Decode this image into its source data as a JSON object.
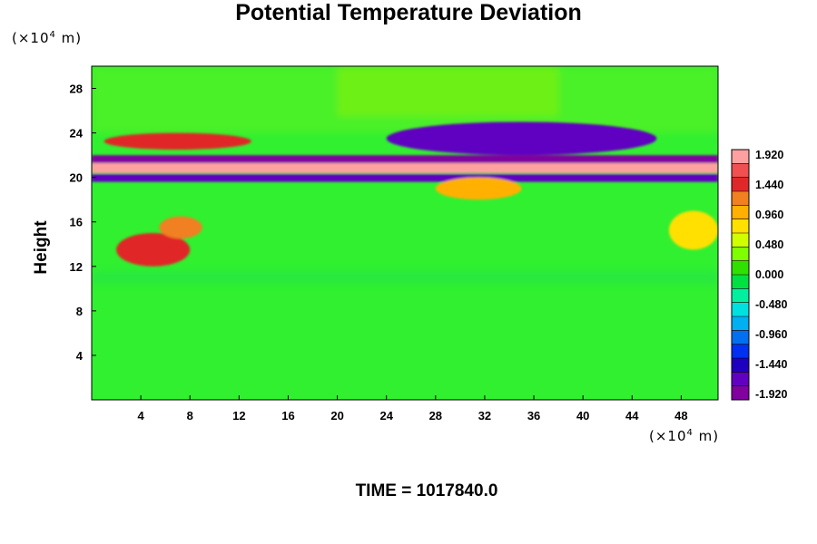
{
  "chart_data": {
    "type": "heatmap",
    "title": "Potential Temperature Deviation",
    "ylabel": "Height",
    "y_unit": "(×10",
    "y_unit_exp": "4",
    "y_unit_tail": " m)",
    "x_unit": "(×10",
    "x_unit_exp": "4",
    "x_unit_tail": " m)",
    "xlim": [
      0,
      51
    ],
    "ylim": [
      0,
      30
    ],
    "x_ticks": [
      "4",
      "8",
      "12",
      "16",
      "20",
      "24",
      "28",
      "32",
      "36",
      "40",
      "44",
      "48"
    ],
    "y_ticks": [
      "4",
      "8",
      "12",
      "16",
      "20",
      "24",
      "28"
    ],
    "colorbar": {
      "range": [
        -2.16,
        2.16
      ],
      "labels": [
        "1.920",
        "1.440",
        "0.960",
        "0.480",
        "0.000",
        "-0.480",
        "-0.960",
        "-1.440",
        "-1.920"
      ],
      "colors": [
        "#ffa0a0",
        "#f05050",
        "#e02828",
        "#f08020",
        "#ffb000",
        "#ffe000",
        "#d0ff00",
        "#80ff00",
        "#30e000",
        "#00e040",
        "#00f0a0",
        "#00e0e0",
        "#00b0f0",
        "#0070f0",
        "#0030f0",
        "#2000c0",
        "#6000c0",
        "#8000a0"
      ]
    },
    "background_color": "#30f030",
    "features": [
      {
        "name": "warm band",
        "x_range": [
          0,
          51
        ],
        "y_range": [
          20.4,
          21.3
        ],
        "value": 2.0
      },
      {
        "name": "cold layer above",
        "x_range": [
          0,
          51
        ],
        "y_range": [
          21.3,
          22.0
        ],
        "value": -2.0
      },
      {
        "name": "cold layer below",
        "x_range": [
          0,
          51
        ],
        "y_range": [
          19.6,
          20.3
        ],
        "value": -1.8
      },
      {
        "name": "warm patch",
        "x_range": [
          1,
          13
        ],
        "y_range": [
          22.5,
          24.0
        ],
        "value": 1.6
      },
      {
        "name": "warm blob",
        "x_range": [
          2,
          8
        ],
        "y_range": [
          12,
          15
        ],
        "value": 1.5
      },
      {
        "name": "warm blob",
        "x_range": [
          5.5,
          9
        ],
        "y_range": [
          14.5,
          16.5
        ],
        "value": 1.3
      },
      {
        "name": "warm plume",
        "x_range": [
          28,
          35
        ],
        "y_range": [
          18,
          20
        ],
        "value": 1.2
      },
      {
        "name": "warm patch",
        "x_range": [
          47,
          51
        ],
        "y_range": [
          13.5,
          17
        ],
        "value": 0.9
      },
      {
        "name": "wave streaks",
        "x_range": [
          24,
          46
        ],
        "y_range": [
          22,
          25
        ],
        "value": -1.7
      }
    ]
  },
  "time_label": "TIME = 1017840.0"
}
